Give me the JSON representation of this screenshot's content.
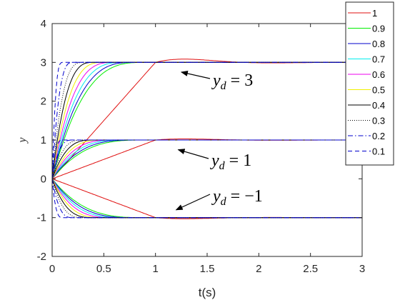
{
  "chart_data": {
    "type": "line",
    "title": "",
    "xlabel": "t(s)",
    "ylabel": "y",
    "xlim": [
      0,
      3
    ],
    "ylim": [
      -2,
      4
    ],
    "x_ticks": [
      "0",
      "0.5",
      "1",
      "1.5",
      "2",
      "2.5",
      "3"
    ],
    "y_ticks": [
      "-2",
      "-1",
      "0",
      "1",
      "2",
      "3",
      "4"
    ],
    "grid": false,
    "legend_position": "top-right",
    "setpoints": [
      3,
      1,
      -1
    ],
    "series": [
      {
        "name": "1",
        "color": "#e01010",
        "dash": "solid"
      },
      {
        "name": "0.9",
        "color": "#00ee00",
        "dash": "solid"
      },
      {
        "name": "0.8",
        "color": "#0000cc",
        "dash": "solid"
      },
      {
        "name": "0.7",
        "color": "#00eeee",
        "dash": "solid"
      },
      {
        "name": "0.6",
        "color": "#ee00ee",
        "dash": "solid"
      },
      {
        "name": "0.5",
        "color": "#f0f000",
        "dash": "solid"
      },
      {
        "name": "0.4",
        "color": "#000000",
        "dash": "solid"
      },
      {
        "name": "0.3",
        "color": "#000000",
        "dash": "dotted"
      },
      {
        "name": "0.2",
        "color": "#0000cc",
        "dash": "dashdot"
      },
      {
        "name": "0.1",
        "color": "#0000cc",
        "dash": "dashed"
      }
    ],
    "annotations": [
      {
        "lhs": "y",
        "sub": "d",
        "rhs": "= 3",
        "target_x": 1.25,
        "target_y": 2.75
      },
      {
        "lhs": "y",
        "sub": "d",
        "rhs": "= 1",
        "target_x": 1.22,
        "target_y": 0.75
      },
      {
        "lhs": "y",
        "sub": "d",
        "rhs": "= −1",
        "target_x": 1.2,
        "target_y": -0.8
      }
    ]
  }
}
